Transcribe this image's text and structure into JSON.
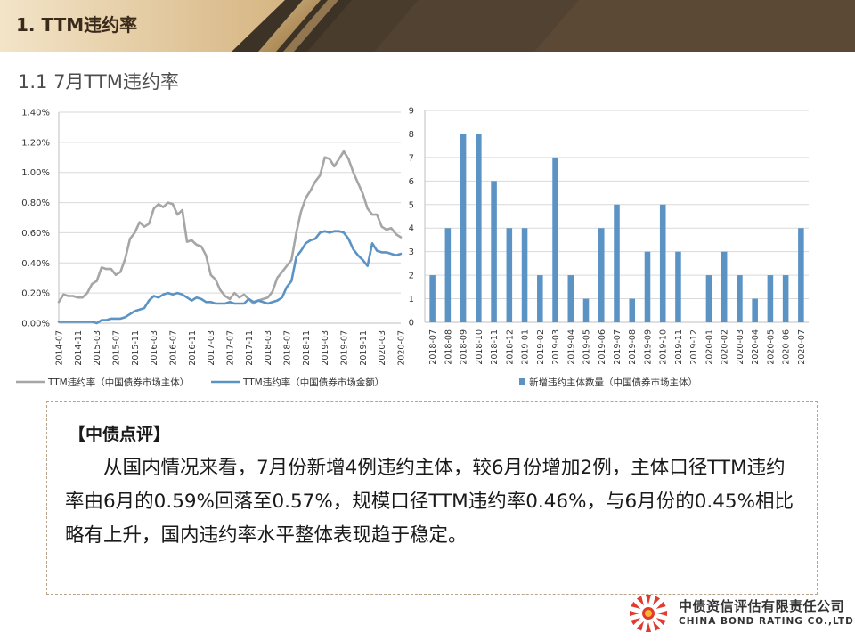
{
  "header": {
    "title": "1. TTM违约率"
  },
  "subtitle": "1.1 7月TTM违约率",
  "colors": {
    "gray_line": "#a6a6a6",
    "blue_line": "#5b93c5",
    "bar": "#5b93c5",
    "gold": "#c9a46a"
  },
  "chart_data": [
    {
      "type": "line",
      "y_ticks": [
        "0.00%",
        "0.20%",
        "0.40%",
        "0.60%",
        "0.80%",
        "1.00%",
        "1.20%",
        "1.40%"
      ],
      "ylim": [
        0,
        1.4
      ],
      "x_ticks": [
        "2014-07",
        "2014-11",
        "2015-03",
        "2015-07",
        "2015-11",
        "2016-03",
        "2016-07",
        "2016-11",
        "2017-03",
        "2017-07",
        "2017-11",
        "2018-03",
        "2018-07",
        "2018-11",
        "2019-03",
        "2019-07",
        "2019-11",
        "2020-03",
        "2020-07"
      ],
      "x_start": "2014-07",
      "series": [
        {
          "name": "TTM违约率（中国债券市场主体）",
          "values": [
            0.14,
            0.19,
            0.18,
            0.18,
            0.17,
            0.17,
            0.2,
            0.26,
            0.28,
            0.37,
            0.36,
            0.36,
            0.32,
            0.34,
            0.43,
            0.56,
            0.6,
            0.67,
            0.64,
            0.66,
            0.76,
            0.79,
            0.77,
            0.8,
            0.79,
            0.72,
            0.75,
            0.54,
            0.55,
            0.52,
            0.51,
            0.45,
            0.32,
            0.29,
            0.22,
            0.18,
            0.16,
            0.2,
            0.17,
            0.19,
            0.16,
            0.13,
            0.15,
            0.16,
            0.17,
            0.21,
            0.3,
            0.34,
            0.38,
            0.42,
            0.6,
            0.74,
            0.83,
            0.88,
            0.94,
            0.98,
            1.1,
            1.09,
            1.04,
            1.09,
            1.14,
            1.09,
            1.0,
            0.93,
            0.86,
            0.76,
            0.72,
            0.72,
            0.64,
            0.62,
            0.63,
            0.59,
            0.57
          ]
        },
        {
          "name": "TTM违约率（中国债券市场金额）",
          "values": [
            0.01,
            0.01,
            0.01,
            0.01,
            0.01,
            0.01,
            0.01,
            0.01,
            0.0,
            0.02,
            0.02,
            0.03,
            0.03,
            0.03,
            0.04,
            0.06,
            0.08,
            0.09,
            0.1,
            0.15,
            0.18,
            0.17,
            0.19,
            0.2,
            0.19,
            0.2,
            0.19,
            0.17,
            0.15,
            0.17,
            0.16,
            0.14,
            0.14,
            0.13,
            0.13,
            0.13,
            0.14,
            0.13,
            0.13,
            0.13,
            0.16,
            0.14,
            0.15,
            0.14,
            0.13,
            0.14,
            0.15,
            0.17,
            0.24,
            0.28,
            0.44,
            0.48,
            0.53,
            0.55,
            0.56,
            0.6,
            0.61,
            0.6,
            0.61,
            0.61,
            0.6,
            0.56,
            0.49,
            0.45,
            0.42,
            0.38,
            0.53,
            0.48,
            0.47,
            0.47,
            0.46,
            0.45,
            0.46
          ]
        }
      ]
    },
    {
      "type": "bar",
      "categories": [
        "2018-07",
        "2018-08",
        "2018-09",
        "2018-10",
        "2018-11",
        "2018-12",
        "2019-01",
        "2019-02",
        "2019-03",
        "2019-04",
        "2019-05",
        "2019-06",
        "2019-07",
        "2019-08",
        "2019-09",
        "2019-10",
        "2019-11",
        "2019-12",
        "2020-01",
        "2020-02",
        "2020-03",
        "2020-04",
        "2020-05",
        "2020-06",
        "2020-07"
      ],
      "values": [
        2,
        4,
        8,
        8,
        6,
        4,
        4,
        2,
        7,
        2,
        1,
        4,
        5,
        1,
        3,
        5,
        3,
        0,
        2,
        3,
        2,
        1,
        2,
        2,
        4
      ],
      "ylim": [
        0,
        9
      ],
      "y_ticks": [
        "0",
        "1",
        "2",
        "3",
        "4",
        "5",
        "6",
        "7",
        "8",
        "9"
      ],
      "series_name": "新增违约主体数量（中国债券市场主体）"
    }
  ],
  "comment": {
    "title": "【中债点评】",
    "body": "从国内情况来看，7月份新增4例违约主体，较6月份增加2例，主体口径TTM违约率由6月的0.59%回落至0.57%，规模口径TTM违约率0.46%，与6月份的0.45%相比略有上升，国内违约率水平整体表现趋于稳定。"
  },
  "logo": {
    "cn": "中债资信评估有限责任公司",
    "en": "CHINA BOND RATING CO.,LTD"
  }
}
